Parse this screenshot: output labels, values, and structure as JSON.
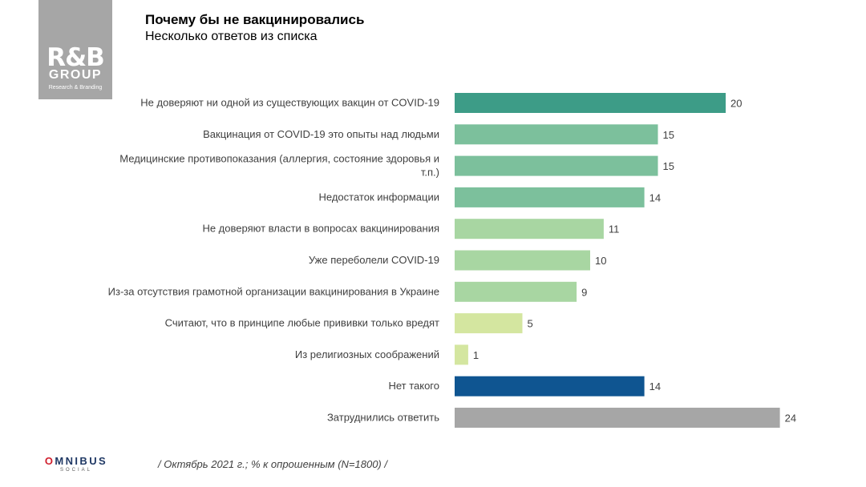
{
  "logo": {
    "rb": "R&B",
    "group": "GROUP",
    "tagline": "Research & Branding"
  },
  "header": {
    "title": "Почему бы не вакцинировались",
    "subtitle": "Несколько ответов из списка"
  },
  "chart_data": {
    "type": "bar",
    "orientation": "horizontal",
    "title": "Почему бы не вакцинировались",
    "subtitle": "Несколько ответов из списка",
    "xlim": [
      0,
      24
    ],
    "categories": [
      [
        "Не доверяют ни одной из существующих вакцин от COVID-19"
      ],
      [
        "Вакцинация от COVID-19 это опыты над людьми"
      ],
      [
        "Медицинские противопоказания  (аллергия, состояние здоровья и",
        "т.п.)"
      ],
      [
        "Недостаток информации"
      ],
      [
        "Не доверяют власти в вопросах вакцинирования"
      ],
      [
        "Уже переболели  COVID-19"
      ],
      [
        "Из-за отсутствия грамотной организации вакцинирования  в Украине"
      ],
      [
        "Считают, что в принципе любые прививки  только вредят"
      ],
      [
        "Из религиозных  соображений"
      ],
      [
        "Нет такого"
      ],
      [
        "Затруднились ответить"
      ]
    ],
    "values": [
      20,
      15,
      15,
      14,
      11,
      10,
      9,
      5,
      1,
      14,
      24
    ],
    "colors": [
      "#3d9c87",
      "#7cc09c",
      "#7cc09c",
      "#7cc09c",
      "#a8d6a2",
      "#a8d6a2",
      "#a8d6a2",
      "#d4e6a0",
      "#d4e6a0",
      "#0f5591",
      "#a6a6a6"
    ]
  },
  "footer": {
    "brand_o": "O",
    "brand_rest": "MNIBUS",
    "brand_sub": "SOCIAL",
    "note": "/ Октябрь 2021 г.; % к опрошенным (N=1800) /"
  }
}
